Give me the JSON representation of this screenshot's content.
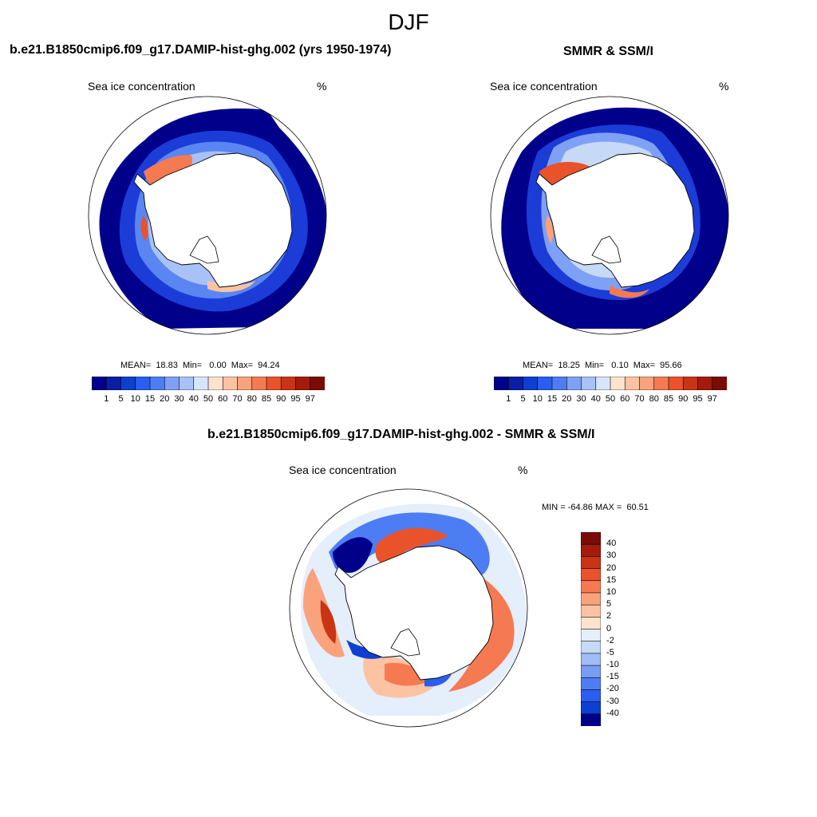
{
  "season": "DJF",
  "panels": {
    "model": {
      "title": "b.e21.B1850cmip6.f09_g17.DAMIP-hist-ghg.002 (yrs 1950-1974)",
      "variable": "Sea ice concentration",
      "units": "%",
      "stats": "MEAN=  18.83  Min=   0.00  Max=  94.24"
    },
    "obs": {
      "title": "SMMR & SSM/I",
      "variable": "Sea ice concentration",
      "units": "%",
      "stats": "MEAN=  18.25  Min=   0.10  Max=  95.66"
    },
    "diff": {
      "title": "b.e21.B1850cmip6.f09_g17.DAMIP-hist-ghg.002 - SMMR & SSM/I",
      "variable": "Sea ice concentration",
      "units": "%",
      "stats": "MIN = -64.86 MAX =  60.51"
    }
  },
  "colorbar_abs": {
    "labels": [
      "1",
      "5",
      "10",
      "15",
      "20",
      "30",
      "40",
      "50",
      "60",
      "70",
      "80",
      "85",
      "90",
      "95",
      "97"
    ],
    "colors": [
      "#00008b",
      "#0a1ea6",
      "#0f3fd0",
      "#2a5ef0",
      "#4d7df5",
      "#7fa1f5",
      "#a8c2f8",
      "#d6e6fa",
      "#fde3cd",
      "#fcc3a3",
      "#f9a27c",
      "#f57a52",
      "#e9532c",
      "#c93514",
      "#a51a0a",
      "#7a0c05"
    ]
  },
  "colorbar_diff": {
    "labels": [
      "40",
      "30",
      "20",
      "15",
      "10",
      "5",
      "2",
      "0",
      "-2",
      "-5",
      "-10",
      "-15",
      "-20",
      "-30",
      "-40"
    ],
    "colors": [
      "#7a0c05",
      "#a51a0a",
      "#c93514",
      "#e9532c",
      "#f57a52",
      "#f9a27c",
      "#fcc3a3",
      "#fde3cd",
      "#e5eefb",
      "#c6d9f7",
      "#a0bcf5",
      "#7a9cf2",
      "#4d7df5",
      "#2a5ef0",
      "#0f3fd0",
      "#00008b"
    ]
  }
}
